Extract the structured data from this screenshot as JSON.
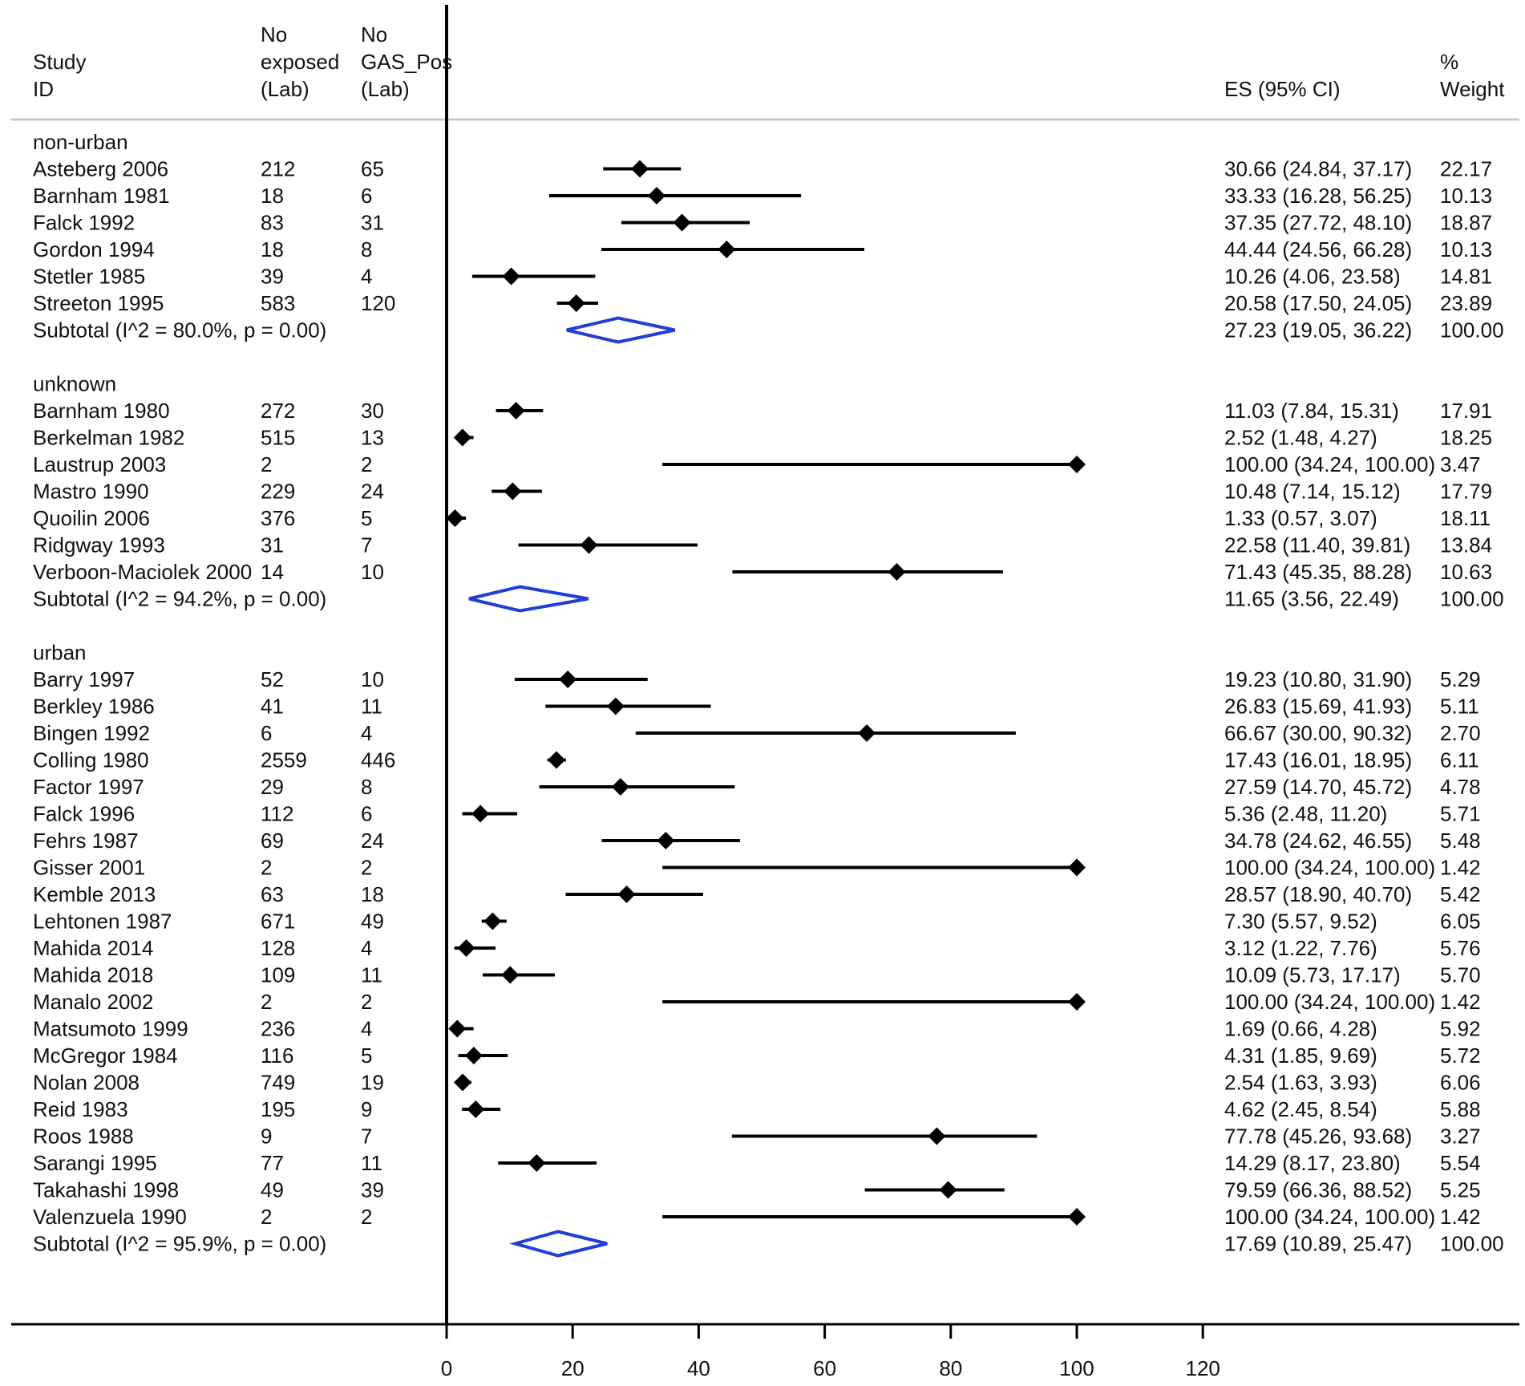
{
  "chart_data": {
    "type": "forest",
    "title": "",
    "xlabel": "",
    "xlim": [
      0,
      120
    ],
    "xticks": [
      0,
      20,
      40,
      60,
      80,
      100,
      120
    ],
    "header": {
      "study": [
        "Study",
        "ID"
      ],
      "exposed": [
        "No",
        "exposed",
        "(Lab)"
      ],
      "gas": [
        "No",
        "GAS_Pos",
        "(Lab)"
      ],
      "es": "ES (95% CI)",
      "weight": [
        "%",
        "Weight"
      ]
    },
    "groups": [
      {
        "name": "non-urban",
        "studies": [
          {
            "id": "Asteberg 2006",
            "exposed": "212",
            "gas_pos": "65",
            "es": 30.66,
            "lo": 24.84,
            "hi": 37.17,
            "ci_text": "30.66 (24.84, 37.17)",
            "weight": "22.17"
          },
          {
            "id": "Barnham 1981",
            "exposed": "18",
            "gas_pos": "6",
            "es": 33.33,
            "lo": 16.28,
            "hi": 56.25,
            "ci_text": "33.33 (16.28, 56.25)",
            "weight": "10.13"
          },
          {
            "id": "Falck 1992",
            "exposed": "83",
            "gas_pos": "31",
            "es": 37.35,
            "lo": 27.72,
            "hi": 48.1,
            "ci_text": "37.35 (27.72, 48.10)",
            "weight": "18.87"
          },
          {
            "id": "Gordon 1994",
            "exposed": "18",
            "gas_pos": "8",
            "es": 44.44,
            "lo": 24.56,
            "hi": 66.28,
            "ci_text": "44.44 (24.56, 66.28)",
            "weight": "10.13"
          },
          {
            "id": "Stetler 1985",
            "exposed": "39",
            "gas_pos": "4",
            "es": 10.26,
            "lo": 4.06,
            "hi": 23.58,
            "ci_text": "10.26 (4.06, 23.58)",
            "weight": "14.81"
          },
          {
            "id": "Streeton 1995",
            "exposed": "583",
            "gas_pos": "120",
            "es": 20.58,
            "lo": 17.5,
            "hi": 24.05,
            "ci_text": "20.58 (17.50, 24.05)",
            "weight": "23.89"
          }
        ],
        "subtotal": {
          "label": "Subtotal  (I^2 = 80.0%, p = 0.00)",
          "es": 27.23,
          "lo": 19.05,
          "hi": 36.22,
          "ci_text": "27.23 (19.05, 36.22)",
          "weight": "100.00"
        }
      },
      {
        "name": "unknown",
        "studies": [
          {
            "id": "Barnham 1980",
            "exposed": "272",
            "gas_pos": "30",
            "es": 11.03,
            "lo": 7.84,
            "hi": 15.31,
            "ci_text": "11.03 (7.84, 15.31)",
            "weight": "17.91"
          },
          {
            "id": "Berkelman 1982",
            "exposed": "515",
            "gas_pos": "13",
            "es": 2.52,
            "lo": 1.48,
            "hi": 4.27,
            "ci_text": "2.52 (1.48, 4.27)",
            "weight": "18.25"
          },
          {
            "id": "Laustrup 2003",
            "exposed": "2",
            "gas_pos": "2",
            "es": 100.0,
            "lo": 34.24,
            "hi": 100.0,
            "ci_text": "100.00 (34.24, 100.00)",
            "weight": "3.47"
          },
          {
            "id": "Mastro 1990",
            "exposed": "229",
            "gas_pos": "24",
            "es": 10.48,
            "lo": 7.14,
            "hi": 15.12,
            "ci_text": "10.48 (7.14, 15.12)",
            "weight": "17.79"
          },
          {
            "id": "Quoilin 2006",
            "exposed": "376",
            "gas_pos": "5",
            "es": 1.33,
            "lo": 0.57,
            "hi": 3.07,
            "ci_text": "1.33 (0.57, 3.07)",
            "weight": "18.11"
          },
          {
            "id": "Ridgway 1993",
            "exposed": "31",
            "gas_pos": "7",
            "es": 22.58,
            "lo": 11.4,
            "hi": 39.81,
            "ci_text": "22.58 (11.40, 39.81)",
            "weight": "13.84"
          },
          {
            "id": "Verboon-Maciolek 2000",
            "exposed": "14",
            "gas_pos": "10",
            "es": 71.43,
            "lo": 45.35,
            "hi": 88.28,
            "ci_text": "71.43 (45.35, 88.28)",
            "weight": "10.63"
          }
        ],
        "subtotal": {
          "label": "Subtotal  (I^2 = 94.2%, p = 0.00)",
          "es": 11.65,
          "lo": 3.56,
          "hi": 22.49,
          "ci_text": "11.65 (3.56, 22.49)",
          "weight": "100.00"
        }
      },
      {
        "name": "urban",
        "studies": [
          {
            "id": "Barry 1997",
            "exposed": "52",
            "gas_pos": "10",
            "es": 19.23,
            "lo": 10.8,
            "hi": 31.9,
            "ci_text": "19.23 (10.80, 31.90)",
            "weight": "5.29"
          },
          {
            "id": "Berkley 1986",
            "exposed": "41",
            "gas_pos": "11",
            "es": 26.83,
            "lo": 15.69,
            "hi": 41.93,
            "ci_text": "26.83 (15.69, 41.93)",
            "weight": "5.11"
          },
          {
            "id": "Bingen 1992",
            "exposed": "6",
            "gas_pos": "4",
            "es": 66.67,
            "lo": 30.0,
            "hi": 90.32,
            "ci_text": "66.67 (30.00, 90.32)",
            "weight": "2.70"
          },
          {
            "id": "Colling 1980",
            "exposed": "2559",
            "gas_pos": "446",
            "es": 17.43,
            "lo": 16.01,
            "hi": 18.95,
            "ci_text": "17.43 (16.01, 18.95)",
            "weight": "6.11"
          },
          {
            "id": "Factor 1997",
            "exposed": "29",
            "gas_pos": "8",
            "es": 27.59,
            "lo": 14.7,
            "hi": 45.72,
            "ci_text": "27.59 (14.70, 45.72)",
            "weight": "4.78"
          },
          {
            "id": "Falck 1996",
            "exposed": "112",
            "gas_pos": "6",
            "es": 5.36,
            "lo": 2.48,
            "hi": 11.2,
            "ci_text": "5.36 (2.48, 11.20)",
            "weight": "5.71"
          },
          {
            "id": "Fehrs 1987",
            "exposed": "69",
            "gas_pos": "24",
            "es": 34.78,
            "lo": 24.62,
            "hi": 46.55,
            "ci_text": "34.78 (24.62, 46.55)",
            "weight": "5.48"
          },
          {
            "id": "Gisser 2001",
            "exposed": "2",
            "gas_pos": "2",
            "es": 100.0,
            "lo": 34.24,
            "hi": 100.0,
            "ci_text": "100.00 (34.24, 100.00)",
            "weight": "1.42"
          },
          {
            "id": "Kemble 2013",
            "exposed": "63",
            "gas_pos": "18",
            "es": 28.57,
            "lo": 18.9,
            "hi": 40.7,
            "ci_text": "28.57 (18.90, 40.70)",
            "weight": "5.42"
          },
          {
            "id": "Lehtonen 1987",
            "exposed": "671",
            "gas_pos": "49",
            "es": 7.3,
            "lo": 5.57,
            "hi": 9.52,
            "ci_text": "7.30 (5.57, 9.52)",
            "weight": "6.05"
          },
          {
            "id": "Mahida 2014",
            "exposed": "128",
            "gas_pos": "4",
            "es": 3.12,
            "lo": 1.22,
            "hi": 7.76,
            "ci_text": "3.12 (1.22, 7.76)",
            "weight": "5.76"
          },
          {
            "id": "Mahida 2018",
            "exposed": "109",
            "gas_pos": "11",
            "es": 10.09,
            "lo": 5.73,
            "hi": 17.17,
            "ci_text": "10.09 (5.73, 17.17)",
            "weight": "5.70"
          },
          {
            "id": "Manalo 2002",
            "exposed": "2",
            "gas_pos": "2",
            "es": 100.0,
            "lo": 34.24,
            "hi": 100.0,
            "ci_text": "100.00 (34.24, 100.00)",
            "weight": "1.42"
          },
          {
            "id": "Matsumoto 1999",
            "exposed": "236",
            "gas_pos": "4",
            "es": 1.69,
            "lo": 0.66,
            "hi": 4.28,
            "ci_text": "1.69 (0.66, 4.28)",
            "weight": "5.92"
          },
          {
            "id": "McGregor 1984",
            "exposed": "116",
            "gas_pos": "5",
            "es": 4.31,
            "lo": 1.85,
            "hi": 9.69,
            "ci_text": "4.31 (1.85, 9.69)",
            "weight": "5.72"
          },
          {
            "id": "Nolan 2008",
            "exposed": "749",
            "gas_pos": "19",
            "es": 2.54,
            "lo": 1.63,
            "hi": 3.93,
            "ci_text": "2.54 (1.63, 3.93)",
            "weight": "6.06"
          },
          {
            "id": "Reid 1983",
            "exposed": "195",
            "gas_pos": "9",
            "es": 4.62,
            "lo": 2.45,
            "hi": 8.54,
            "ci_text": "4.62 (2.45, 8.54)",
            "weight": "5.88"
          },
          {
            "id": "Roos 1988",
            "exposed": "9",
            "gas_pos": "7",
            "es": 77.78,
            "lo": 45.26,
            "hi": 93.68,
            "ci_text": "77.78 (45.26, 93.68)",
            "weight": "3.27"
          },
          {
            "id": "Sarangi 1995",
            "exposed": "77",
            "gas_pos": "11",
            "es": 14.29,
            "lo": 8.17,
            "hi": 23.8,
            "ci_text": "14.29 (8.17, 23.80)",
            "weight": "5.54"
          },
          {
            "id": "Takahashi 1998",
            "exposed": "49",
            "gas_pos": "39",
            "es": 79.59,
            "lo": 66.36,
            "hi": 88.52,
            "ci_text": "79.59 (66.36, 88.52)",
            "weight": "5.25"
          },
          {
            "id": "Valenzuela 1990",
            "exposed": "2",
            "gas_pos": "2",
            "es": 100.0,
            "lo": 34.24,
            "hi": 100.0,
            "ci_text": "100.00 (34.24, 100.00)",
            "weight": "1.42"
          }
        ],
        "subtotal": {
          "label": "Subtotal  (I^2 = 95.9%, p = 0.00)",
          "es": 17.69,
          "lo": 10.89,
          "hi": 25.47,
          "ci_text": "17.69 (10.89, 25.47)",
          "weight": "100.00"
        }
      }
    ],
    "colors": {
      "ink": "#000000",
      "text": "#111111",
      "subtotal": "#1f3fd6",
      "header_rule": "#c8c8c8"
    }
  }
}
